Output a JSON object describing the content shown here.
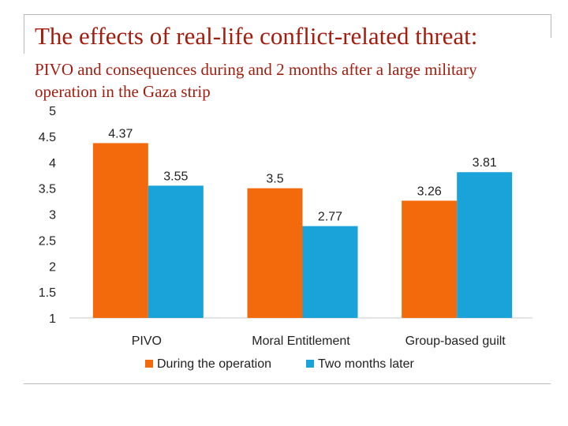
{
  "slide": {
    "title": "The effects of real-life conflict-related threat:",
    "subtitle": "PIVO and consequences during and 2 months  after a large military operation in the Gaza strip"
  },
  "chart_data": {
    "type": "bar",
    "categories": [
      "PIVO",
      "Moral Entitlement",
      "Group-based guilt"
    ],
    "series": [
      {
        "name": "During the operation",
        "values": [
          4.37,
          3.5,
          3.26
        ],
        "labels": [
          "4.37",
          "3.5",
          "3.26"
        ],
        "color": "#f26a0c"
      },
      {
        "name": "Two months later",
        "values": [
          3.55,
          2.77,
          3.81
        ],
        "labels": [
          "3.55",
          "2.77",
          "3.81"
        ],
        "color": "#1aa3d8"
      }
    ],
    "yticks": [
      "1",
      "1.5",
      "2",
      "2.5",
      "3",
      "3.5",
      "4",
      "4.5",
      "5"
    ],
    "ylim": [
      1,
      5
    ],
    "grid": false,
    "legend": "bottom"
  }
}
